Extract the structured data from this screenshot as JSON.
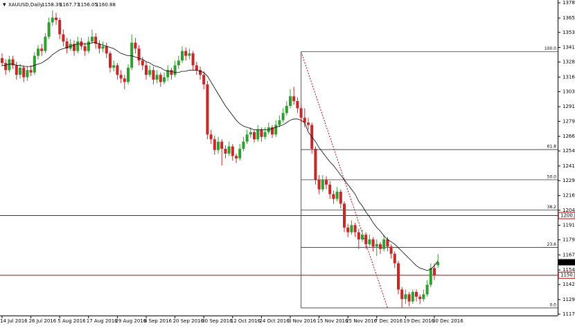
{
  "chart_data": {
    "type": "candlestick",
    "symbol": "XAUUSD,Daily",
    "categories": [
      "14 Jul 2016",
      null,
      null,
      null,
      null,
      null,
      null,
      null,
      "26 Jul 2016",
      null,
      null,
      null,
      null,
      null,
      null,
      null,
      "5 Aug 2016",
      null,
      null,
      null,
      null,
      null,
      null,
      null,
      "17 Aug 2016",
      null,
      null,
      null,
      null,
      null,
      null,
      null,
      "29 Aug 2016",
      null,
      null,
      null,
      null,
      null,
      null,
      null,
      "8 Sep 2016",
      null,
      null,
      null,
      null,
      null,
      null,
      null,
      "20 Sep 2016",
      null,
      null,
      null,
      null,
      null,
      null,
      null,
      "30 Sep 2016",
      null,
      null,
      null,
      null,
      null,
      null,
      null,
      "12 Oct 2016",
      null,
      null,
      null,
      null,
      null,
      null,
      null,
      "24 Oct 2016",
      null,
      null,
      null,
      null,
      null,
      null,
      null,
      "3 Nov 2016",
      null,
      null,
      null,
      null,
      null,
      null,
      null,
      "15 Nov 2016",
      null,
      null,
      null,
      null,
      null,
      null,
      null,
      "25 Nov 2016",
      null,
      null,
      null,
      null,
      null,
      null,
      null,
      "7 Dec 2016",
      null,
      null,
      null,
      null,
      null,
      null,
      null,
      "19 Dec 2016",
      null,
      null,
      null,
      null,
      null,
      null,
      null,
      "30 Dec 2016",
      null
    ],
    "candles": [
      [
        1332,
        1336,
        1325,
        1328
      ],
      [
        1328,
        1331,
        1318,
        1322
      ],
      [
        1322,
        1334,
        1320,
        1331
      ],
      [
        1331,
        1334,
        1323,
        1326
      ],
      [
        1326,
        1329,
        1314,
        1318
      ],
      [
        1318,
        1327,
        1315,
        1324
      ],
      [
        1324,
        1326,
        1312,
        1316
      ],
      [
        1316,
        1325,
        1313,
        1322
      ],
      [
        1322,
        1326,
        1317,
        1320
      ],
      [
        1320,
        1337,
        1318,
        1334
      ],
      [
        1334,
        1343,
        1331,
        1340
      ],
      [
        1340,
        1344,
        1334,
        1338
      ],
      [
        1338,
        1353,
        1336,
        1350
      ],
      [
        1350,
        1366,
        1348,
        1362
      ],
      [
        1362,
        1372,
        1359,
        1366
      ],
      [
        1366,
        1370,
        1360,
        1364
      ],
      [
        1364,
        1366,
        1348,
        1352
      ],
      [
        1352,
        1356,
        1342,
        1346
      ],
      [
        1346,
        1349,
        1336,
        1340
      ],
      [
        1340,
        1348,
        1338,
        1344
      ],
      [
        1344,
        1347,
        1334,
        1338
      ],
      [
        1338,
        1350,
        1336,
        1346
      ],
      [
        1346,
        1349,
        1339,
        1342
      ],
      [
        1342,
        1345,
        1334,
        1338
      ],
      [
        1338,
        1350,
        1336,
        1346
      ],
      [
        1346,
        1356,
        1344,
        1350
      ],
      [
        1350,
        1353,
        1340,
        1344
      ],
      [
        1344,
        1347,
        1336,
        1340
      ],
      [
        1340,
        1346,
        1337,
        1342
      ],
      [
        1342,
        1345,
        1332,
        1336
      ],
      [
        1336,
        1338,
        1320,
        1324
      ],
      [
        1324,
        1330,
        1321,
        1326
      ],
      [
        1326,
        1328,
        1314,
        1318
      ],
      [
        1318,
        1322,
        1311,
        1315
      ],
      [
        1315,
        1318,
        1306,
        1312
      ],
      [
        1312,
        1327,
        1310,
        1324
      ],
      [
        1324,
        1352,
        1322,
        1345
      ],
      [
        1345,
        1349,
        1336,
        1340
      ],
      [
        1340,
        1343,
        1326,
        1330
      ],
      [
        1330,
        1333,
        1322,
        1326
      ],
      [
        1326,
        1329,
        1314,
        1318
      ],
      [
        1318,
        1326,
        1316,
        1322
      ],
      [
        1322,
        1325,
        1310,
        1314
      ],
      [
        1314,
        1322,
        1311,
        1318
      ],
      [
        1318,
        1320,
        1308,
        1312
      ],
      [
        1312,
        1320,
        1310,
        1316
      ],
      [
        1316,
        1326,
        1313,
        1322
      ],
      [
        1322,
        1324,
        1314,
        1318
      ],
      [
        1318,
        1330,
        1316,
        1326
      ],
      [
        1326,
        1334,
        1323,
        1330
      ],
      [
        1330,
        1342,
        1328,
        1338
      ],
      [
        1338,
        1341,
        1330,
        1334
      ],
      [
        1334,
        1340,
        1331,
        1336
      ],
      [
        1336,
        1338,
        1322,
        1326
      ],
      [
        1326,
        1329,
        1318,
        1322
      ],
      [
        1322,
        1325,
        1314,
        1318
      ],
      [
        1318,
        1321,
        1306,
        1310
      ],
      [
        1310,
        1313,
        1264,
        1268
      ],
      [
        1268,
        1272,
        1260,
        1264
      ],
      [
        1264,
        1267,
        1251,
        1255
      ],
      [
        1255,
        1266,
        1252,
        1262
      ],
      [
        1262,
        1264,
        1242,
        1256
      ],
      [
        1256,
        1259,
        1248,
        1252
      ],
      [
        1252,
        1262,
        1250,
        1258
      ],
      [
        1258,
        1260,
        1246,
        1250
      ],
      [
        1250,
        1252,
        1244,
        1248
      ],
      [
        1248,
        1260,
        1246,
        1256
      ],
      [
        1256,
        1266,
        1254,
        1262
      ],
      [
        1262,
        1272,
        1260,
        1268
      ],
      [
        1268,
        1274,
        1265,
        1270
      ],
      [
        1270,
        1272,
        1261,
        1264
      ],
      [
        1264,
        1276,
        1262,
        1272
      ],
      [
        1272,
        1274,
        1262,
        1266
      ],
      [
        1266,
        1274,
        1264,
        1270
      ],
      [
        1270,
        1278,
        1268,
        1274
      ],
      [
        1274,
        1276,
        1265,
        1268
      ],
      [
        1268,
        1280,
        1266,
        1276
      ],
      [
        1276,
        1284,
        1274,
        1280
      ],
      [
        1280,
        1290,
        1278,
        1286
      ],
      [
        1286,
        1296,
        1284,
        1292
      ],
      [
        1292,
        1306,
        1290,
        1300
      ],
      [
        1300,
        1308,
        1293,
        1296
      ],
      [
        1296,
        1299,
        1286,
        1290
      ],
      [
        1290,
        1293,
        1278,
        1282
      ],
      [
        1282,
        1290,
        1274,
        1278
      ],
      [
        1278,
        1282,
        1272,
        1276
      ],
      [
        1276,
        1278,
        1252,
        1256
      ],
      [
        1256,
        1258,
        1226,
        1230
      ],
      [
        1230,
        1234,
        1218,
        1222
      ],
      [
        1222,
        1234,
        1220,
        1230
      ],
      [
        1230,
        1233,
        1222,
        1226
      ],
      [
        1226,
        1229,
        1214,
        1218
      ],
      [
        1218,
        1221,
        1210,
        1214
      ],
      [
        1214,
        1224,
        1212,
        1220
      ],
      [
        1220,
        1222,
        1206,
        1210
      ],
      [
        1210,
        1212,
        1186,
        1190
      ],
      [
        1190,
        1193,
        1182,
        1186
      ],
      [
        1186,
        1196,
        1184,
        1192
      ],
      [
        1192,
        1194,
        1182,
        1186
      ],
      [
        1186,
        1189,
        1172,
        1180
      ],
      [
        1180,
        1188,
        1178,
        1184
      ],
      [
        1184,
        1186,
        1172,
        1176
      ],
      [
        1176,
        1184,
        1174,
        1180
      ],
      [
        1180,
        1182,
        1170,
        1174
      ],
      [
        1174,
        1180,
        1166,
        1176
      ],
      [
        1176,
        1178,
        1168,
        1172
      ],
      [
        1172,
        1184,
        1170,
        1180
      ],
      [
        1180,
        1182,
        1170,
        1174
      ],
      [
        1174,
        1176,
        1164,
        1168
      ],
      [
        1168,
        1170,
        1156,
        1160
      ],
      [
        1160,
        1162,
        1134,
        1138
      ],
      [
        1138,
        1140,
        1123,
        1130
      ],
      [
        1130,
        1138,
        1126,
        1134
      ],
      [
        1134,
        1136,
        1124,
        1128
      ],
      [
        1128,
        1138,
        1126,
        1136
      ],
      [
        1136,
        1138,
        1128,
        1132
      ],
      [
        1132,
        1134,
        1126,
        1130
      ],
      [
        1130,
        1138,
        1128,
        1134
      ],
      [
        1134,
        1146,
        1132,
        1142
      ],
      [
        1142,
        1160,
        1140,
        1156
      ],
      [
        1156,
        1160,
        1146,
        1150
      ],
      [
        1158.39,
        1167.77,
        1156.05,
        1160.88
      ]
    ],
    "ma": [
      1326,
      1326,
      1327,
      1327,
      1326,
      1326,
      1325,
      1325,
      1325,
      1326,
      1327,
      1328,
      1330,
      1332,
      1335,
      1337,
      1339,
      1340,
      1341,
      1342,
      1343,
      1344,
      1344,
      1344,
      1344,
      1345,
      1345,
      1344,
      1343,
      1342,
      1341,
      1340,
      1338,
      1336,
      1335,
      1334,
      1334,
      1333,
      1332,
      1331,
      1329,
      1328,
      1326,
      1325,
      1324,
      1322,
      1321,
      1321,
      1320,
      1320,
      1321,
      1321,
      1322,
      1322,
      1322,
      1321,
      1320,
      1317,
      1312,
      1307,
      1302,
      1297,
      1292,
      1288,
      1284,
      1280,
      1277,
      1275,
      1274,
      1273,
      1272,
      1272,
      1272,
      1272,
      1272,
      1273,
      1274,
      1275,
      1276,
      1278,
      1280,
      1281,
      1281,
      1280,
      1278,
      1270,
      1266,
      1262,
      1257,
      1253,
      1249,
      1245,
      1242,
      1238,
      1234,
      1230,
      1226,
      1222,
      1218,
      1212,
      1208,
      1203,
      1199,
      1194,
      1190,
      1187,
      1183,
      1180,
      1178,
      1176,
      1173,
      1170,
      1167,
      1164,
      1161,
      1158,
      1156,
      1155,
      1154,
      1155,
      1158,
      1162
    ],
    "bull_color": "#2e9e2e",
    "bear_color": "#c62828",
    "ma_color": "#000000",
    "ylim": [
      1116.19,
      1380.77
    ],
    "yticks": [
      1378.45,
      1365.65,
      {
        "value": 1353.6,
        "label": "1353.60"
      },
      {
        "value": 1341,
        "label": "1341.00"
      },
      1328.75,
      1316.15,
      {
        "value": 1303.9,
        "label": "1303.90"
      },
      {
        "value": 1291.3,
        "label": "1291.30"
      },
      1279.05,
      1266.45,
      {
        "value": 1254.2,
        "label": "1254.20"
      },
      {
        "value": 1241.6,
        "label": "1241.60"
      },
      1229.35,
      1216.75,
      {
        "value": 1204.5,
        "label": "1204.50"
      },
      {
        "value": 1191.9,
        "label": "1191.90"
      },
      1179.65,
      1167.05,
      1154.45,
      {
        "value": 1142.2,
        "label": "1142.20"
      },
      {
        "value": 1129.6,
        "label": "1129.60"
      },
      1117.35
    ],
    "hlines": [
      {
        "value": 1200,
        "label": "1200.00",
        "color": "#c00000"
      },
      {
        "value": 1150,
        "label": "1150.00",
        "color": "#c00000"
      }
    ],
    "fib": {
      "high": 1337.4,
      "low": 1122.6,
      "from_bar": 83,
      "to_bar": 107,
      "levels": [
        {
          "value": 100,
          "label": "100.0"
        },
        {
          "value": 61.8,
          "label": "61.8"
        },
        {
          "value": 50,
          "label": "50.0"
        },
        {
          "value": 38.2,
          "label": "38.2"
        },
        {
          "value": 23.6,
          "label": "23.6"
        },
        {
          "value": 0,
          "label": "0.0"
        }
      ]
    }
  }
}
